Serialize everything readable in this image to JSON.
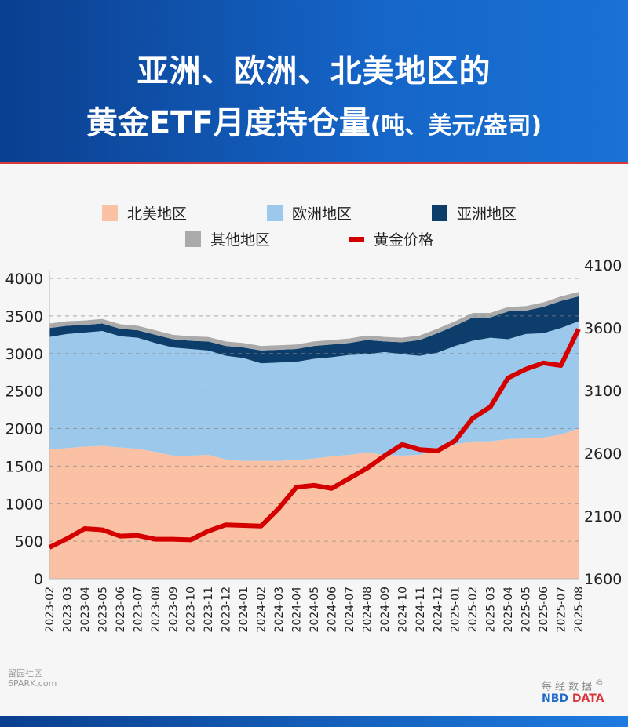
{
  "header": {
    "line1": "亚洲、欧洲、北美地区的",
    "line2_main": "黄金ETF月度持仓量",
    "line2_unit": "(吨、美元/盎司)"
  },
  "chart_data": {
    "type": "area",
    "stacked": true,
    "title": "亚洲、欧洲、北美地区的黄金ETF月度持仓量(吨、美元/盎司)",
    "categories": [
      "2023-02",
      "2023-03",
      "2023-04",
      "2023-05",
      "2023-06",
      "2023-07",
      "2023-08",
      "2023-09",
      "2023-10",
      "2023-11",
      "2023-12",
      "2024-01",
      "2024-02",
      "2024-03",
      "2024-04",
      "2024-05",
      "2024-06",
      "2024-07",
      "2024-08",
      "2024-09",
      "2024-10",
      "2024-11",
      "2024-12",
      "2025-01",
      "2025-02",
      "2025-03",
      "2025-04",
      "2025-05",
      "2025-06",
      "2025-07",
      "2025-08"
    ],
    "ylim": [
      0,
      4000
    ],
    "yticks": [
      0,
      500,
      1000,
      1500,
      2000,
      2500,
      3000,
      3500,
      4000
    ],
    "y2lim": [
      1600,
      4100
    ],
    "y2ticks": [
      1600,
      2100,
      2600,
      3100,
      3600,
      4100
    ],
    "grid": true,
    "legend_position": "top",
    "series": [
      {
        "name": "北美地区",
        "color": "#fbc1a5",
        "axis": "left",
        "type": "area",
        "values": [
          1720,
          1740,
          1760,
          1770,
          1750,
          1730,
          1690,
          1640,
          1640,
          1650,
          1590,
          1570,
          1570,
          1570,
          1580,
          1600,
          1630,
          1650,
          1680,
          1650,
          1640,
          1650,
          1720,
          1790,
          1830,
          1830,
          1860,
          1870,
          1880,
          1920,
          2000
        ]
      },
      {
        "name": "欧洲地区",
        "color": "#9cc8ec",
        "axis": "left",
        "type": "area",
        "values": [
          1500,
          1520,
          1520,
          1530,
          1480,
          1480,
          1450,
          1440,
          1420,
          1390,
          1380,
          1370,
          1300,
          1310,
          1310,
          1330,
          1320,
          1330,
          1310,
          1370,
          1350,
          1320,
          1290,
          1310,
          1340,
          1380,
          1330,
          1390,
          1390,
          1420,
          1430
        ]
      },
      {
        "name": "亚洲地区",
        "color": "#0d3d6b",
        "axis": "left",
        "type": "area",
        "values": [
          120,
          110,
          100,
          100,
          100,
          100,
          110,
          110,
          110,
          120,
          130,
          140,
          170,
          170,
          170,
          170,
          170,
          160,
          190,
          140,
          160,
          210,
          260,
          270,
          310,
          270,
          370,
          310,
          350,
          360,
          330
        ]
      },
      {
        "name": "其他地区",
        "color": "#aaaaaa",
        "axis": "left",
        "type": "area",
        "values": [
          60,
          60,
          60,
          60,
          60,
          60,
          60,
          60,
          60,
          60,
          60,
          60,
          60,
          60,
          60,
          60,
          60,
          60,
          60,
          60,
          60,
          60,
          60,
          60,
          60,
          60,
          60,
          60,
          60,
          60,
          60
        ]
      },
      {
        "name": "黄金价格",
        "color": "#d40000",
        "axis": "right",
        "type": "line",
        "values": [
          1850,
          1920,
          2000,
          1990,
          1940,
          1945,
          1915,
          1915,
          1910,
          1980,
          2030,
          2025,
          2020,
          2160,
          2330,
          2345,
          2320,
          2400,
          2480,
          2580,
          2670,
          2630,
          2620,
          2700,
          2880,
          2970,
          3200,
          3270,
          3320,
          3300,
          3590
        ]
      }
    ]
  },
  "watermark": {
    "line1": "留园社区",
    "line2": "6PARK.com"
  },
  "brand": {
    "cn": "每经数据",
    "en1": "NBD",
    "en2": "DATA",
    "mark": "©"
  }
}
